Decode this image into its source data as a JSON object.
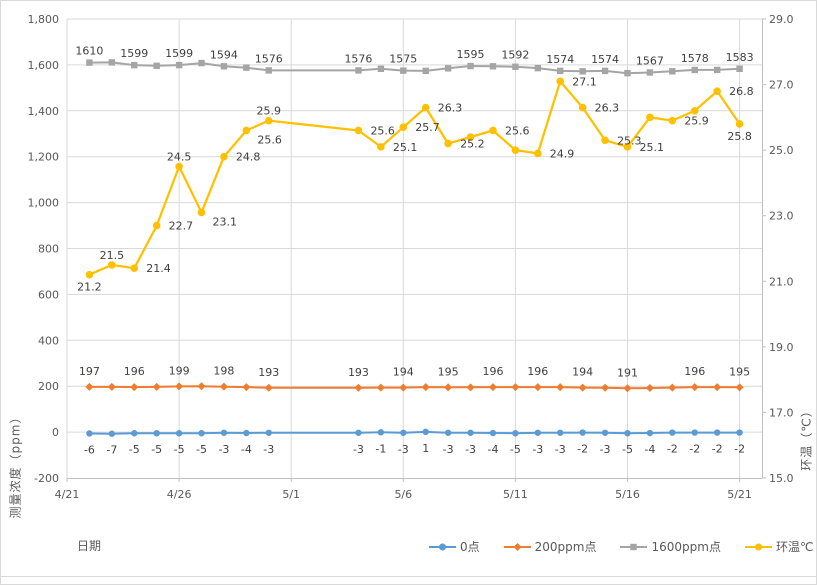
{
  "chart_data": {
    "type": "line",
    "title": "",
    "x_axis": {
      "title": "日期",
      "domain_days": [
        0,
        31
      ],
      "ticks": [
        {
          "d": 0,
          "label": "4/21"
        },
        {
          "d": 5,
          "label": "4/26"
        },
        {
          "d": 10,
          "label": "5/1"
        },
        {
          "d": 15,
          "label": "5/6"
        },
        {
          "d": 20,
          "label": "5/11"
        },
        {
          "d": 25,
          "label": "5/16"
        },
        {
          "d": 30,
          "label": "5/21"
        }
      ]
    },
    "y_left": {
      "title": "测量浓度（ppm）",
      "min": -200,
      "max": 1800,
      "step": 200,
      "ticks": [
        {
          "v": -200,
          "label": "-200"
        },
        {
          "v": 0,
          "label": "0"
        },
        {
          "v": 200,
          "label": "200"
        },
        {
          "v": 400,
          "label": "400"
        },
        {
          "v": 600,
          "label": "600"
        },
        {
          "v": 800,
          "label": "800"
        },
        {
          "v": 1000,
          "label": "1,000"
        },
        {
          "v": 1200,
          "label": "1,200"
        },
        {
          "v": 1400,
          "label": "1,400"
        },
        {
          "v": 1600,
          "label": "1,600"
        },
        {
          "v": 1800,
          "label": "1,800"
        }
      ]
    },
    "y_right": {
      "title": "环温（℃）",
      "min": 15,
      "max": 29,
      "step": 2,
      "ticks": [
        {
          "v": 15,
          "label": "15.0"
        },
        {
          "v": 17,
          "label": "17.0"
        },
        {
          "v": 19,
          "label": "19.0"
        },
        {
          "v": 21,
          "label": "21.0"
        },
        {
          "v": 23,
          "label": "23.0"
        },
        {
          "v": 25,
          "label": "25.0"
        },
        {
          "v": 27,
          "label": "27.0"
        },
        {
          "v": 29,
          "label": "29.0"
        }
      ]
    },
    "points": {
      "dates": [
        "4/22",
        "4/23",
        "4/24",
        "4/25",
        "4/26",
        "4/27",
        "4/28",
        "4/29",
        "4/30",
        "5/4",
        "5/5",
        "5/6",
        "5/7",
        "5/8",
        "5/9",
        "5/10",
        "5/11",
        "5/12",
        "5/13",
        "5/14",
        "5/15",
        "5/16",
        "5/17",
        "5/18",
        "5/19",
        "5/20",
        "5/21"
      ],
      "day": [
        1,
        2,
        3,
        4,
        5,
        6,
        7,
        8,
        9,
        13,
        14,
        15,
        16,
        17,
        18,
        19,
        20,
        21,
        22,
        23,
        24,
        25,
        26,
        27,
        28,
        29,
        30
      ]
    },
    "series": [
      {
        "name": "0点",
        "color": "#5B9BD5",
        "marker": "circle",
        "axis": "left",
        "label_side": "below",
        "values": [
          -6,
          -7,
          -5,
          -5,
          -5,
          -5,
          -3,
          -4,
          -3,
          -3,
          -1,
          -3,
          1,
          -3,
          -3,
          -4,
          -5,
          -3,
          -3,
          -2,
          -3,
          -5,
          -4,
          -2,
          -2,
          -2,
          -2
        ],
        "labels": [
          "-6",
          "-7",
          "-5",
          "-5",
          "-5",
          "-5",
          "-3",
          "-4",
          "-3",
          "-3",
          "-1",
          "-3",
          "1",
          "-3",
          "-3",
          "-4",
          "-5",
          "-3",
          "-3",
          "-2",
          "-3",
          "-5",
          "-4",
          "-2",
          "-2",
          "-2",
          "-2"
        ]
      },
      {
        "name": "200ppm点",
        "color": "#ED7D31",
        "marker": "diamond",
        "axis": "left",
        "label_side": "above",
        "values": [
          197,
          197,
          196,
          197,
          199,
          200,
          198,
          196,
          193,
          193,
          194,
          194,
          196,
          195,
          195,
          196,
          196,
          196,
          196,
          194,
          193,
          191,
          192,
          194,
          196,
          196,
          195
        ],
        "labels": [
          "197",
          null,
          "196",
          null,
          "199",
          null,
          "198",
          null,
          "193",
          "193",
          null,
          "194",
          null,
          "195",
          null,
          "196",
          null,
          "196",
          null,
          "194",
          null,
          "191",
          null,
          null,
          "196",
          null,
          "195"
        ]
      },
      {
        "name": "1600ppm点",
        "color": "#A5A5A5",
        "marker": "square",
        "axis": "left",
        "label_side": "above",
        "values": [
          1610,
          1611,
          1599,
          1596,
          1599,
          1608,
          1594,
          1588,
          1576,
          1576,
          1583,
          1575,
          1574,
          1585,
          1595,
          1594,
          1592,
          1586,
          1574,
          1572,
          1574,
          1564,
          1567,
          1572,
          1578,
          1578,
          1583
        ],
        "labels": [
          "1610",
          null,
          "1599",
          null,
          "1599",
          null,
          "1594",
          null,
          "1576",
          "1576",
          null,
          "1575",
          null,
          null,
          "1595",
          null,
          "1592",
          null,
          "1574",
          null,
          "1574",
          null,
          "1567",
          null,
          "1578",
          null,
          "1583"
        ]
      },
      {
        "name": "环温℃",
        "color": "#FFC000",
        "marker": "circle",
        "axis": "right",
        "label_side": "mixed",
        "values": [
          21.2,
          21.5,
          21.4,
          22.7,
          24.5,
          23.1,
          24.8,
          25.6,
          25.9,
          25.6,
          25.1,
          25.7,
          26.3,
          25.2,
          25.4,
          25.6,
          25.0,
          24.9,
          27.1,
          26.3,
          25.3,
          25.1,
          26.0,
          25.9,
          26.2,
          26.8,
          25.8
        ],
        "labels": [
          "21.2",
          "21.5",
          "21.4",
          "22.7",
          "24.5",
          "23.1",
          "24.8",
          "25.6",
          "25.9",
          "25.6",
          "25.1",
          "25.7",
          "26.3",
          "25.2",
          null,
          "25.6",
          null,
          "24.9",
          "27.1",
          "26.3",
          "25.3",
          "25.1",
          null,
          "25.9",
          null,
          "26.8",
          "25.8"
        ],
        "label_pos": [
          "below",
          "above",
          "right",
          "right",
          "above",
          "right-below",
          "right",
          "right-below",
          "above",
          "right",
          "right",
          "right",
          "right",
          "right",
          null,
          "right",
          null,
          "right",
          "right",
          "right",
          "right",
          "right",
          null,
          "right",
          null,
          "right",
          "below"
        ]
      }
    ],
    "legend": {
      "items": [
        "0点",
        "200ppm点",
        "1600ppm点",
        "环温℃"
      ]
    },
    "style_colors": {
      "gridline": "#D9D9D9",
      "axis_line": "#BFBFBF",
      "tick_text": "#595959",
      "data_label_text": "#404040"
    }
  }
}
